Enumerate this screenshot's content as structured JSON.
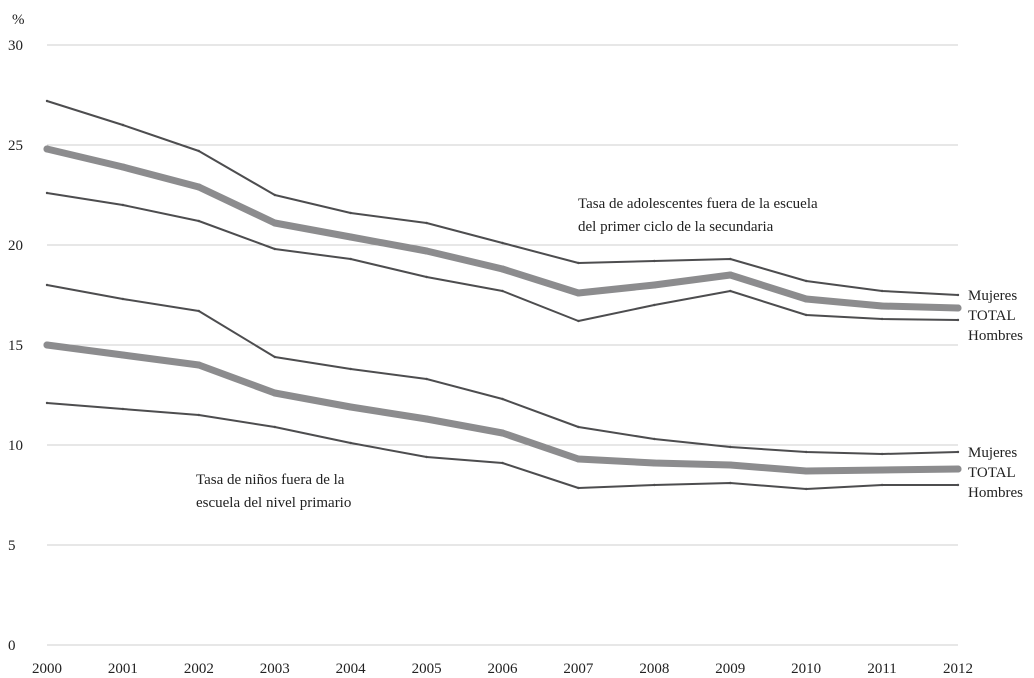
{
  "chart_data": {
    "type": "line",
    "ylabel": "%",
    "ylim": [
      0,
      30
    ],
    "y_ticks": [
      "0",
      "5",
      "10",
      "15",
      "20",
      "25",
      "30"
    ],
    "x": [
      "2000",
      "2001",
      "2002",
      "2003",
      "2004",
      "2005",
      "2006",
      "2007",
      "2008",
      "2009",
      "2010",
      "2011",
      "2012"
    ],
    "grid": true,
    "colors": {
      "total": "#8c8c8e",
      "gender": "#4d4d4f",
      "total_label": "#9a9a9a",
      "grid": "#cfcfcf"
    },
    "annotations": {
      "secondary": [
        "Tasa de adolescentes fuera de la escuela",
        "del primer ciclo de la secundaria"
      ],
      "primary": [
        "Tasa de niños fuera de la",
        "escuela del nivel primario"
      ]
    },
    "series": [
      {
        "name": "Mujeres",
        "group": "secondary",
        "role": "gender",
        "values": [
          27.2,
          26.0,
          24.7,
          22.5,
          21.6,
          21.1,
          20.1,
          19.1,
          19.2,
          19.3,
          18.2,
          17.7,
          17.5
        ]
      },
      {
        "name": "TOTAL",
        "group": "secondary",
        "role": "total",
        "values": [
          24.8,
          23.9,
          22.9,
          21.1,
          20.4,
          19.7,
          18.8,
          17.6,
          18.0,
          18.5,
          17.3,
          16.95,
          16.85
        ]
      },
      {
        "name": "Hombres",
        "group": "secondary",
        "role": "gender",
        "values": [
          22.6,
          22.0,
          21.2,
          19.8,
          19.3,
          18.4,
          17.7,
          16.2,
          17.0,
          17.7,
          16.5,
          16.3,
          16.25
        ]
      },
      {
        "name": "Mujeres",
        "group": "primary",
        "role": "gender",
        "values": [
          18.0,
          17.3,
          16.7,
          14.4,
          13.8,
          13.3,
          12.3,
          10.9,
          10.3,
          9.9,
          9.65,
          9.55,
          9.65
        ]
      },
      {
        "name": "TOTAL",
        "group": "primary",
        "role": "total",
        "values": [
          15.0,
          14.5,
          14.0,
          12.6,
          11.9,
          11.3,
          10.6,
          9.3,
          9.1,
          9.0,
          8.7,
          8.75,
          8.8
        ]
      },
      {
        "name": "Hombres",
        "group": "primary",
        "role": "gender",
        "values": [
          12.1,
          11.8,
          11.5,
          10.9,
          10.1,
          9.4,
          9.1,
          7.85,
          8.0,
          8.1,
          7.8,
          8.0,
          8.0
        ]
      }
    ]
  }
}
